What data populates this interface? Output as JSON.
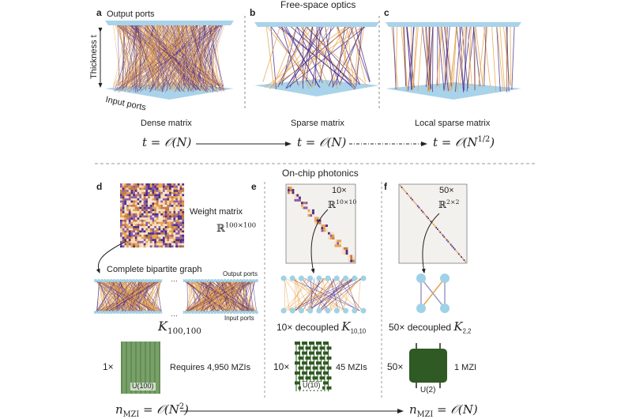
{
  "colors": {
    "plate": "#a9d3ea",
    "node": "#9fd2e6",
    "orange": "#e8a24a",
    "purple": "#4b2c86",
    "green_dark": "#2f5a23",
    "green_light": "#6f9a5f",
    "matrix_bg": "#f3f1ee"
  },
  "top": {
    "title": "Free-space optics",
    "panels": [
      {
        "label": "a",
        "caption": "Dense matrix",
        "output_ports": "Output ports",
        "input_ports": "Input ports",
        "thickness": "Thickness t"
      },
      {
        "label": "b",
        "caption": "Sparse matrix"
      },
      {
        "label": "c",
        "caption": "Local sparse matrix"
      }
    ],
    "equations": [
      "t = 𝒪(N)",
      "t = 𝒪(N)",
      "t = 𝒪(N",
      "1/2",
      ")"
    ]
  },
  "bottom": {
    "title": "On-chip photonics",
    "d": {
      "label": "d",
      "weight_matrix": "Weight matrix",
      "space": "ℝ",
      "space_dim": "100×100",
      "graph_title": "Complete bipartite graph",
      "output_ports": "Output ports",
      "input_ports": "Input ports",
      "ellipsis": "…",
      "graph_name": "K",
      "graph_sub": "100,100",
      "multiplier": "1×",
      "unitary": "U(100)",
      "mzis": "Requires 4,950 MZIs"
    },
    "e": {
      "label": "e",
      "blocks": "10×",
      "space": "ℝ",
      "space_dim": "10×10",
      "graph_prefix": "10× decoupled ",
      "graph_name": "K",
      "graph_sub": "10,10",
      "multiplier": "10×",
      "unitary": "U(10)",
      "mzis": "45 MZIs"
    },
    "f": {
      "label": "f",
      "blocks": "50×",
      "space": "ℝ",
      "space_dim": "2×2",
      "graph_prefix": "50× decoupled ",
      "graph_name": "K",
      "graph_sub": "2,2",
      "multiplier": "50×",
      "unitary": "U(2)",
      "mzis": "1 MZI"
    },
    "equations": {
      "left": "n",
      "left_sub": "MZI",
      "left_rhs": " = 𝒪(N",
      "left_sup": "2",
      "left_end": ")",
      "right": "n",
      "right_sub": "MZI",
      "right_rhs": " = 𝒪(N)"
    }
  }
}
